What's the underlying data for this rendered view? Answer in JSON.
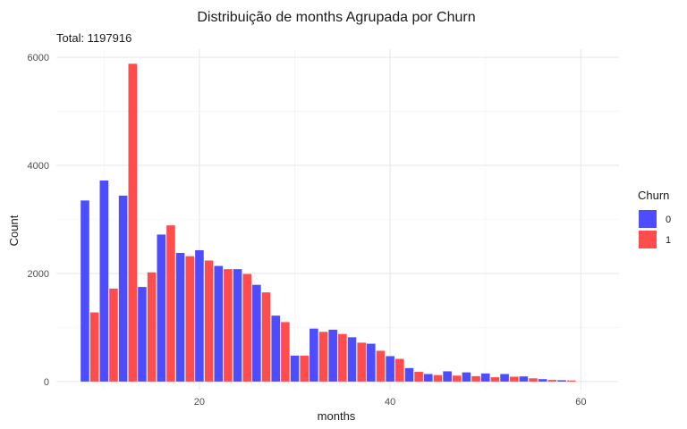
{
  "chart_data": {
    "type": "bar",
    "title": "Distribuição de months Agrupada por Churn",
    "subtitle": "Total: 1197916",
    "xlabel": "months",
    "ylabel": "Count",
    "xlim": [
      5,
      64
    ],
    "ylim": [
      -150,
      6150
    ],
    "x_ticks": [
      20,
      40,
      60
    ],
    "y_ticks": [
      0,
      2000,
      4000,
      6000
    ],
    "grid": true,
    "legend": {
      "title": "Churn",
      "position": "right"
    },
    "x": [
      8,
      9,
      10,
      11,
      12,
      13,
      14,
      15,
      16,
      17,
      18,
      19,
      20,
      21,
      22,
      23,
      24,
      25,
      26,
      27,
      28,
      29,
      30,
      31,
      32,
      33,
      34,
      35,
      36,
      37,
      38,
      39,
      40,
      41,
      42,
      43,
      44,
      45,
      46,
      47,
      48,
      49,
      50,
      51,
      52,
      53,
      54,
      55,
      56,
      57,
      58,
      59,
      60,
      61,
      62,
      63
    ],
    "series": [
      {
        "name": "0",
        "color": "#4d4dff",
        "values": [
          3350,
          0,
          3720,
          0,
          3440,
          0,
          1750,
          0,
          2720,
          0,
          2380,
          0,
          2430,
          0,
          2140,
          0,
          2080,
          0,
          1790,
          0,
          1220,
          0,
          480,
          0,
          980,
          0,
          960,
          0,
          820,
          0,
          700,
          0,
          470,
          0,
          250,
          0,
          140,
          0,
          190,
          0,
          170,
          0,
          150,
          0,
          140,
          0,
          95,
          0,
          45,
          0,
          25,
          0,
          0,
          0,
          0,
          0
        ]
      },
      {
        "name": "1",
        "color": "#ff4d4d",
        "values": [
          0,
          1280,
          0,
          1720,
          0,
          5880,
          0,
          2020,
          0,
          2890,
          0,
          2320,
          0,
          2240,
          0,
          2080,
          0,
          1990,
          0,
          1650,
          0,
          1100,
          0,
          480,
          0,
          920,
          0,
          880,
          0,
          720,
          0,
          570,
          0,
          420,
          0,
          180,
          0,
          120,
          0,
          110,
          0,
          100,
          0,
          80,
          0,
          90,
          0,
          60,
          0,
          30,
          0,
          20,
          0,
          0,
          0,
          0
        ]
      }
    ]
  }
}
